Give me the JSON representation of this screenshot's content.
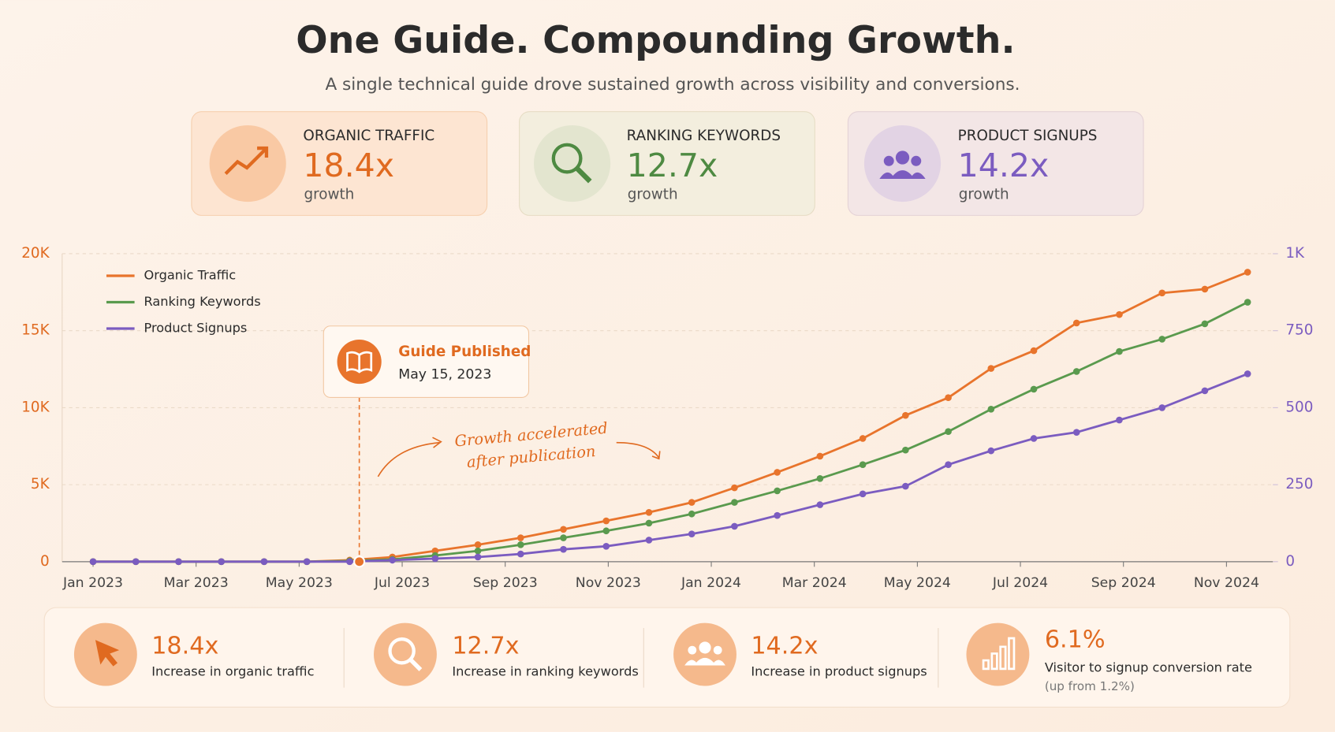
{
  "header": {
    "title": "One Guide. Compounding Growth.",
    "subtitle": "A single technical guide drove sustained growth across visibility and conversions."
  },
  "kpis": [
    {
      "label": "ORGANIC TRAFFIC",
      "value": "18.4x",
      "unit": "growth"
    },
    {
      "label": "RANKING KEYWORDS",
      "value": "12.7x",
      "unit": "growth"
    },
    {
      "label": "PRODUCT SIGNUPS",
      "value": "14.2x",
      "unit": "growth"
    }
  ],
  "chart_data": {
    "type": "line",
    "x": [
      0,
      0.83,
      1.66,
      2.49,
      3.32,
      4.15,
      4.98,
      5.81,
      6.64,
      7.47,
      8.3,
      9.13,
      9.96,
      10.79,
      11.62,
      12.45,
      13.28,
      14.11,
      14.94,
      15.77,
      16.6,
      17.43,
      18.26,
      19.09,
      19.92,
      20.75,
      21.58,
      22.41
    ],
    "series": [
      {
        "name": "Organic Traffic",
        "color": "#e8742c",
        "values": [
          0,
          0,
          0,
          0,
          0,
          0,
          100,
          300,
          700,
          1100,
          1550,
          2100,
          2650,
          3200,
          3850,
          4800,
          5800,
          6850,
          8000,
          9500,
          10650,
          12550,
          13700,
          15500,
          16050,
          17450,
          17700,
          18800
        ]
      },
      {
        "name": "Ranking Keywords",
        "color": "#5a9a4e",
        "values": [
          0,
          0,
          0,
          0,
          0,
          0,
          50,
          150,
          400,
          700,
          1100,
          1550,
          2000,
          2500,
          3100,
          3850,
          4600,
          5400,
          6300,
          7250,
          8450,
          9900,
          11200,
          12350,
          13650,
          14450,
          15450,
          16850
        ]
      },
      {
        "name": "Product Signups",
        "color": "#7b5cc0",
        "axis": "y2",
        "values": [
          0,
          0,
          0,
          0,
          0,
          0,
          0,
          5,
          10,
          15,
          25,
          40,
          50,
          70,
          90,
          115,
          150,
          185,
          220,
          245,
          315,
          360,
          400,
          420,
          460,
          500,
          555,
          610
        ]
      }
    ],
    "xlim": [
      -0.6,
      22.9
    ],
    "xticks": [
      {
        "value": 0,
        "label": "Jan 2023"
      },
      {
        "value": 2,
        "label": "Mar 2023"
      },
      {
        "value": 4,
        "label": "May 2023"
      },
      {
        "value": 6,
        "label": "Jul 2023"
      },
      {
        "value": 8,
        "label": "Sep 2023"
      },
      {
        "value": 10,
        "label": "Nov 2023"
      },
      {
        "value": 12,
        "label": "Jan 2024"
      },
      {
        "value": 14,
        "label": "Mar 2024"
      },
      {
        "value": 16,
        "label": "May 2024"
      },
      {
        "value": 18,
        "label": "Jul 2024"
      },
      {
        "value": 20,
        "label": "Sep 2024"
      },
      {
        "value": 22,
        "label": "Nov 2024"
      }
    ],
    "ylim": [
      0,
      20000
    ],
    "yticks": [
      0,
      {
        "value": 5000,
        "label": "5K"
      },
      {
        "value": 10000,
        "label": "10K"
      },
      {
        "value": 15000,
        "label": "15K"
      },
      {
        "value": 20000,
        "label": "20K"
      }
    ],
    "y2lim": [
      0,
      1000
    ],
    "y2ticks": [
      0,
      250,
      500,
      750,
      {
        "value": 1000,
        "label": "1K"
      }
    ],
    "grid": true,
    "legend": "upper left",
    "annotations": {
      "title": "Guide Published",
      "date": "May 15, 2023",
      "note": [
        "Growth accelerated",
        "after publication"
      ]
    }
  },
  "stats": [
    {
      "value": "18.4x",
      "label": "Increase in organic traffic"
    },
    {
      "value": "12.7x",
      "label": "Increase in ranking keywords"
    },
    {
      "value": "14.2x",
      "label": "Increase in product signups"
    },
    {
      "value": "6.1%",
      "label": "Visitor to signup conversion rate",
      "note": "(up from 1.2%)"
    }
  ]
}
